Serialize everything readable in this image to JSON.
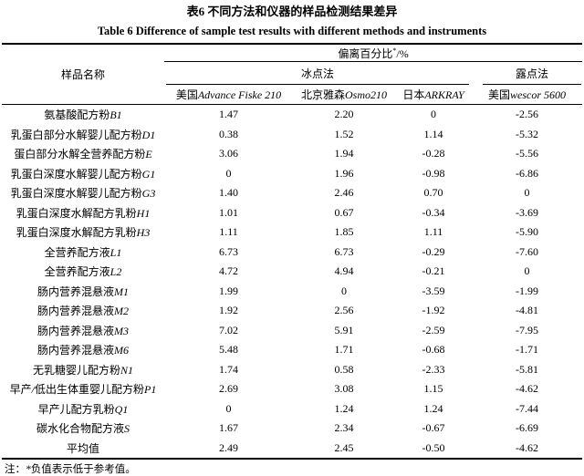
{
  "title_zh": "表6 不同方法和仪器的样品检测结果差异",
  "title_en": "Table 6 Difference of sample test results with different methods and instruments",
  "table": {
    "sample_name_header": "样品名称",
    "deviation_header": {
      "label": "偏离百分比",
      "superscript": "*",
      "unit": "/%"
    },
    "method_groups": [
      "冰点法",
      "露点法"
    ],
    "instrument_headers": [
      "美国Advance Fiske 210",
      "北京雅森Osmo210",
      "日本ARKRAY",
      "美国wescor 5600"
    ],
    "rows": [
      {
        "name": "氨基酸配方粉B1",
        "values": [
          "1.47",
          "2.20",
          "0",
          "-2.56"
        ]
      },
      {
        "name": "乳蛋白部分水解婴儿配方粉D1",
        "values": [
          "0.38",
          "1.52",
          "1.14",
          "-5.32"
        ]
      },
      {
        "name": "蛋白部分水解全营养配方粉E",
        "values": [
          "3.06",
          "1.94",
          "-0.28",
          "-5.56"
        ]
      },
      {
        "name": "乳蛋白深度水解婴儿配方粉G1",
        "values": [
          "0",
          "1.96",
          "-0.98",
          "-6.86"
        ]
      },
      {
        "name": "乳蛋白深度水解婴儿配方粉G3",
        "values": [
          "1.40",
          "2.46",
          "0.70",
          "0"
        ]
      },
      {
        "name": "乳蛋白深度水解配方乳粉H1",
        "values": [
          "1.01",
          "0.67",
          "-0.34",
          "-3.69"
        ]
      },
      {
        "name": "乳蛋白深度水解配方乳粉H3",
        "values": [
          "1.11",
          "1.85",
          "1.11",
          "-5.90"
        ]
      },
      {
        "name": "全营养配方液L1",
        "values": [
          "6.73",
          "6.73",
          "-0.29",
          "-7.60"
        ]
      },
      {
        "name": "全营养配方液L2",
        "values": [
          "4.72",
          "4.94",
          "-0.21",
          "0"
        ]
      },
      {
        "name": "肠内营养混悬液M1",
        "values": [
          "1.99",
          "0",
          "-3.59",
          "-1.99"
        ]
      },
      {
        "name": "肠内营养混悬液M2",
        "values": [
          "1.92",
          "2.56",
          "-1.92",
          "-4.81"
        ]
      },
      {
        "name": "肠内营养混悬液M3",
        "values": [
          "7.02",
          "5.91",
          "-2.59",
          "-7.95"
        ]
      },
      {
        "name": "肠内营养混悬液M6",
        "values": [
          "5.48",
          "1.71",
          "-0.68",
          "-1.71"
        ]
      },
      {
        "name": "无乳糖婴儿配方粉N1",
        "values": [
          "1.74",
          "0.58",
          "-2.33",
          "-5.81"
        ]
      },
      {
        "name": "早产/低出生体重婴儿配方粉P1",
        "values": [
          "2.69",
          "3.08",
          "1.15",
          "-4.62"
        ]
      },
      {
        "name": "早产儿配方乳粉Q1",
        "values": [
          "0",
          "1.24",
          "1.24",
          "-7.44"
        ]
      },
      {
        "name": "碳水化合物配方液S",
        "values": [
          "1.67",
          "2.34",
          "-0.67",
          "-6.69"
        ]
      },
      {
        "name": "平均值",
        "values": [
          "2.49",
          "2.45",
          "-0.50",
          "-4.62"
        ]
      }
    ]
  },
  "footnote": "注：*负值表示低于参考值。"
}
